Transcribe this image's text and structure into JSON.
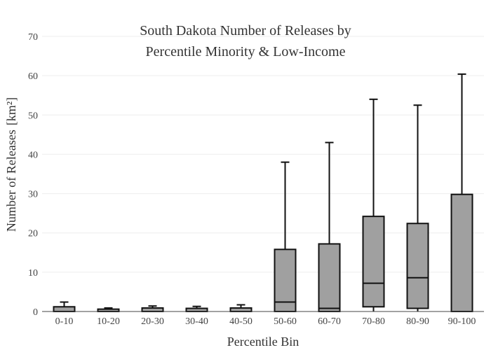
{
  "chart_data": {
    "type": "box",
    "title_lines": [
      "South Dakota Number of Releases by",
      "Percentile Minority & Low-Income"
    ],
    "xlabel": "Percentile Bin",
    "ylabel": "Number of Releases",
    "ylabel_unit": "[km²]",
    "ylim": [
      0,
      70
    ],
    "yticks": [
      0,
      10,
      20,
      30,
      40,
      50,
      60,
      70
    ],
    "grid": true,
    "box_color": "#a0a0a0",
    "outline_color": "#111111",
    "categories": [
      "0-10",
      "10-20",
      "20-30",
      "30-40",
      "40-50",
      "50-60",
      "60-70",
      "70-80",
      "80-90",
      "90-100"
    ],
    "boxes": [
      {
        "whisker_low": 0,
        "q1": 0,
        "median": 0,
        "q3": 1.2,
        "whisker_high": 2.4
      },
      {
        "whisker_low": 0,
        "q1": 0,
        "median": 0,
        "q3": 0.6,
        "whisker_high": 0.9
      },
      {
        "whisker_low": 0,
        "q1": 0,
        "median": 0,
        "q3": 0.9,
        "whisker_high": 1.4
      },
      {
        "whisker_low": 0,
        "q1": 0,
        "median": 0,
        "q3": 0.8,
        "whisker_high": 1.3
      },
      {
        "whisker_low": 0,
        "q1": 0,
        "median": 0,
        "q3": 0.9,
        "whisker_high": 1.7
      },
      {
        "whisker_low": 0,
        "q1": 0,
        "median": 2.4,
        "q3": 15.8,
        "whisker_high": 38
      },
      {
        "whisker_low": 0,
        "q1": 0,
        "median": 0.8,
        "q3": 17.2,
        "whisker_high": 43
      },
      {
        "whisker_low": 0,
        "q1": 1.2,
        "median": 7.2,
        "q3": 24.2,
        "whisker_high": 54
      },
      {
        "whisker_low": 0,
        "q1": 0.8,
        "median": 8.6,
        "q3": 22.4,
        "whisker_high": 52.5
      },
      {
        "whisker_low": 0,
        "q1": 0,
        "median": 0,
        "q3": 29.8,
        "whisker_high": 60.4
      }
    ]
  }
}
